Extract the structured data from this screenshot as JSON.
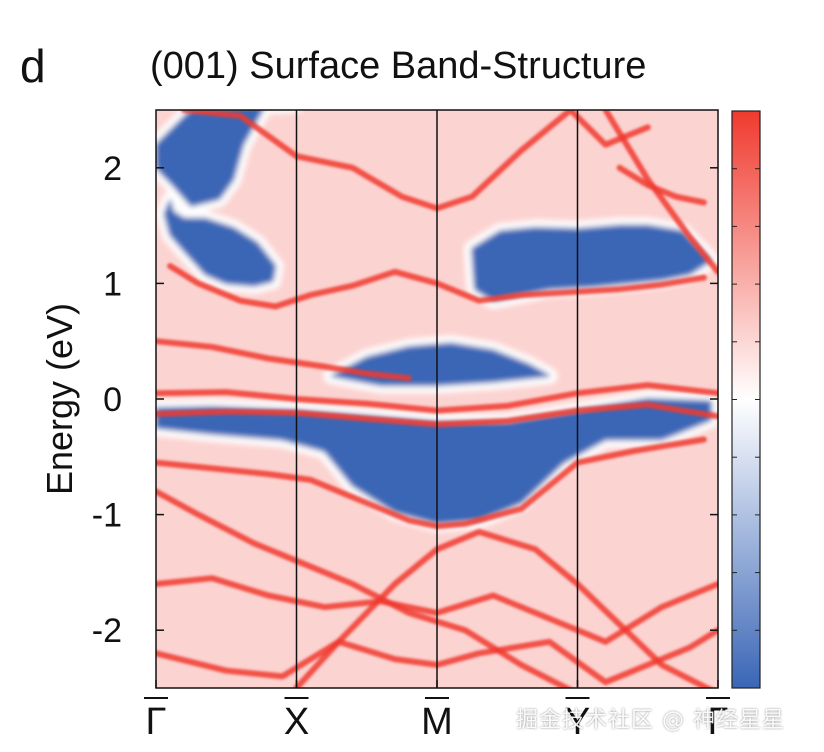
{
  "panel_label": "d",
  "watermark": "掘金技术社区 @ 神经星星",
  "chart_data": {
    "type": "heatmap",
    "title": "(001) Surface Band-Structure",
    "xlabel": "",
    "ylabel": "Energy (eV)",
    "ylim": [
      -2.5,
      2.5
    ],
    "yticks": [
      -2,
      -1,
      0,
      1,
      2
    ],
    "ytick_labels": [
      "-2",
      "-1",
      "0",
      "1",
      "2"
    ],
    "kpath": [
      "Γ",
      "X",
      "M",
      "Y",
      "Γ"
    ],
    "kpath_labels_overlined": true,
    "colormap": {
      "low": "#3a66b6",
      "mid": "#ffffff",
      "high": "#f03a2e"
    },
    "colorbar_ticks": 10,
    "background_fill": "#fbd3d1",
    "blue_pockets": [
      {
        "path": [
          [
            1.0,
            2.55
          ],
          [
            0.25,
            2.5
          ],
          [
            0.0,
            2.2
          ],
          [
            0.0,
            2.0
          ],
          [
            0.12,
            1.85
          ],
          [
            0.25,
            1.67
          ],
          [
            0.45,
            1.73
          ],
          [
            0.55,
            1.9
          ],
          [
            0.62,
            2.2
          ],
          [
            0.78,
            2.55
          ]
        ]
      },
      {
        "path": [
          [
            0.1,
            1.72
          ],
          [
            0.12,
            1.62
          ],
          [
            0.2,
            1.56
          ],
          [
            0.35,
            1.56
          ],
          [
            0.55,
            1.48
          ],
          [
            0.72,
            1.35
          ],
          [
            0.85,
            1.15
          ],
          [
            0.83,
            1.02
          ],
          [
            0.7,
            0.98
          ],
          [
            0.5,
            1.0
          ],
          [
            0.35,
            1.08
          ],
          [
            0.2,
            1.28
          ],
          [
            0.1,
            1.42
          ],
          [
            0.06,
            1.6
          ]
        ]
      },
      {
        "path": [
          [
            2.25,
            1.3
          ],
          [
            2.45,
            1.45
          ],
          [
            2.7,
            1.48
          ],
          [
            3.0,
            1.47
          ],
          [
            3.3,
            1.5
          ],
          [
            3.5,
            1.5
          ],
          [
            3.75,
            1.45
          ],
          [
            3.95,
            1.2
          ],
          [
            3.8,
            1.08
          ],
          [
            3.6,
            1.03
          ],
          [
            3.35,
            1.0
          ],
          [
            3.1,
            0.97
          ],
          [
            2.8,
            0.95
          ],
          [
            2.6,
            0.9
          ],
          [
            2.4,
            0.85
          ],
          [
            2.27,
            0.95
          ]
        ]
      },
      {
        "path": [
          [
            0.0,
            -0.08
          ],
          [
            0.4,
            -0.07
          ],
          [
            1.0,
            -0.1
          ],
          [
            1.5,
            -0.15
          ],
          [
            2.0,
            -0.2
          ],
          [
            2.5,
            -0.2
          ],
          [
            3.0,
            -0.1
          ],
          [
            3.5,
            0.0
          ],
          [
            3.95,
            -0.02
          ],
          [
            3.95,
            -0.18
          ],
          [
            3.6,
            -0.35
          ],
          [
            3.2,
            -0.35
          ],
          [
            2.9,
            -0.55
          ],
          [
            2.6,
            -0.9
          ],
          [
            2.3,
            -1.05
          ],
          [
            2.0,
            -1.08
          ],
          [
            1.7,
            -0.98
          ],
          [
            1.4,
            -0.75
          ],
          [
            1.2,
            -0.45
          ],
          [
            0.9,
            -0.35
          ],
          [
            0.4,
            -0.3
          ],
          [
            0.0,
            -0.25
          ]
        ]
      },
      {
        "path": [
          [
            1.25,
            0.2
          ],
          [
            1.5,
            0.36
          ],
          [
            1.8,
            0.45
          ],
          [
            2.1,
            0.48
          ],
          [
            2.4,
            0.42
          ],
          [
            2.65,
            0.3
          ],
          [
            2.8,
            0.2
          ],
          [
            2.4,
            0.15
          ],
          [
            2.0,
            0.12
          ],
          [
            1.6,
            0.12
          ]
        ]
      }
    ],
    "bands": [
      {
        "x": [
          0,
          0.5,
          1,
          1.5,
          2,
          2.5,
          3,
          3.5,
          4
        ],
        "y": [
          0.05,
          0.06,
          0.0,
          -0.04,
          -0.1,
          -0.06,
          0.05,
          0.12,
          0.05
        ]
      },
      {
        "x": [
          0,
          0.5,
          1,
          1.5,
          2,
          2.5,
          3,
          3.5,
          4
        ],
        "y": [
          -0.13,
          -0.11,
          -0.12,
          -0.17,
          -0.22,
          -0.19,
          -0.1,
          -0.05,
          -0.15
        ]
      },
      {
        "x": [
          0.1,
          0.3,
          0.6,
          0.85,
          1.1,
          1.4,
          1.7,
          2.0,
          2.3,
          2.6,
          2.9,
          3.3,
          3.6,
          3.9
        ],
        "y": [
          1.15,
          1.0,
          0.85,
          0.8,
          0.9,
          0.98,
          1.1,
          1.0,
          0.85,
          0.9,
          0.92,
          0.95,
          0.99,
          1.05
        ]
      },
      {
        "x": [
          0.2,
          0.6,
          1.0,
          1.4,
          1.75,
          2.0,
          2.25,
          2.6,
          2.8,
          2.95,
          3.2,
          3.5
        ],
        "y": [
          2.5,
          2.45,
          2.1,
          2.0,
          1.75,
          1.65,
          1.75,
          2.15,
          2.35,
          2.5,
          2.2,
          2.35
        ]
      },
      {
        "x": [
          0.0,
          0.4,
          0.8,
          1.1,
          1.5,
          1.8,
          2.0,
          2.2,
          2.6,
          3.0,
          3.4,
          3.9
        ],
        "y": [
          -0.55,
          -0.6,
          -0.65,
          -0.7,
          -0.9,
          -1.05,
          -1.1,
          -1.08,
          -0.95,
          -0.55,
          -0.45,
          -0.35
        ]
      },
      {
        "x": [
          0.0,
          0.4,
          0.8,
          1.2,
          1.6,
          2.0,
          2.4,
          2.8,
          3.2,
          3.6,
          4.0
        ],
        "y": [
          -1.6,
          -1.55,
          -1.7,
          -1.8,
          -1.75,
          -1.85,
          -1.7,
          -1.9,
          -2.1,
          -1.8,
          -1.6
        ]
      },
      {
        "x": [
          0.0,
          0.5,
          0.9,
          1.3,
          1.7,
          2.0,
          2.3,
          2.8,
          3.2,
          3.5,
          3.8,
          4.0
        ],
        "y": [
          -2.2,
          -2.35,
          -2.4,
          -2.1,
          -2.25,
          -2.3,
          -2.2,
          -2.1,
          -2.45,
          -2.3,
          -2.15,
          -2.0
        ]
      },
      {
        "x": [
          0.0,
          0.3,
          0.7,
          1.0,
          1.4,
          1.8,
          2.2,
          2.6,
          3.0
        ],
        "y": [
          -0.8,
          -1.0,
          -1.25,
          -1.4,
          -1.6,
          -1.85,
          -2.0,
          -2.3,
          -2.55
        ]
      },
      {
        "x": [
          1.0,
          1.3,
          1.7,
          2.0,
          2.3,
          2.7,
          3.0,
          3.3,
          3.6,
          4.0
        ],
        "y": [
          -2.5,
          -2.1,
          -1.6,
          -1.3,
          -1.15,
          -1.3,
          -1.6,
          -1.95,
          -2.3,
          -2.55
        ]
      },
      {
        "x": [
          0.0,
          0.4,
          0.8,
          1.2,
          1.5,
          1.8
        ],
        "y": [
          0.5,
          0.45,
          0.35,
          0.28,
          0.22,
          0.18
        ]
      },
      {
        "x": [
          3.2,
          3.5,
          3.8,
          4.0
        ],
        "y": [
          2.5,
          1.9,
          1.4,
          1.1
        ]
      },
      {
        "x": [
          3.3,
          3.5,
          3.7,
          3.9
        ],
        "y": [
          2.0,
          1.85,
          1.75,
          1.7
        ]
      }
    ]
  }
}
